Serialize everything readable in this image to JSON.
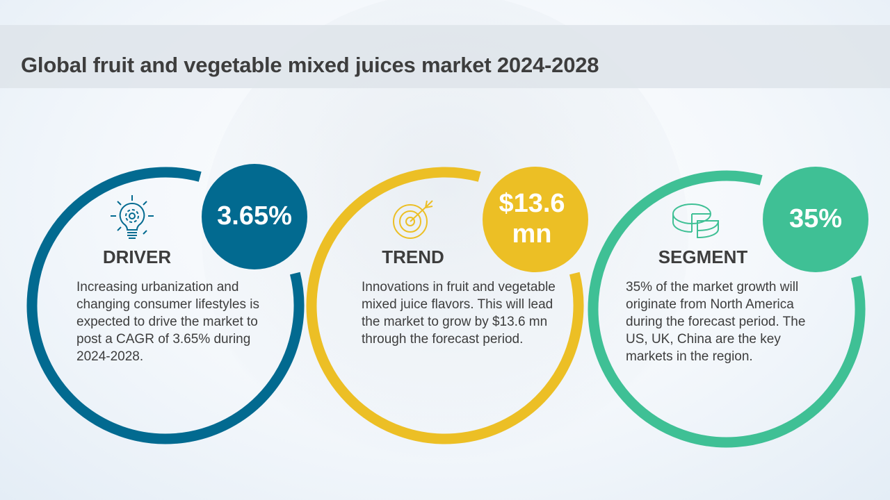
{
  "title": "Global fruit and vegetable mixed juices market 2024-2028",
  "cards": [
    {
      "heading": "DRIVER",
      "value": "3.65%",
      "text": "Increasing urbanization and changing consumer lifestyles is expected to drive the market to post a CAGR of 3.65% during 2024-2028.",
      "color": "#026a90",
      "icon": "lightbulb-gear-icon"
    },
    {
      "heading": "TREND",
      "value": "$13.6 mn",
      "text": "Innovations in fruit and vegetable mixed juice flavors. This will lead the market to grow by $13.6 mn through the forecast period.",
      "color": "#ecbf25",
      "icon": "target-arrow-icon"
    },
    {
      "heading": "SEGMENT",
      "value": "35%",
      "text": "35% of the market growth will originate from North America during the forecast period. The US, UK, China are the key markets in the region.",
      "color": "#3fc095",
      "icon": "pie-chart-icon"
    }
  ]
}
